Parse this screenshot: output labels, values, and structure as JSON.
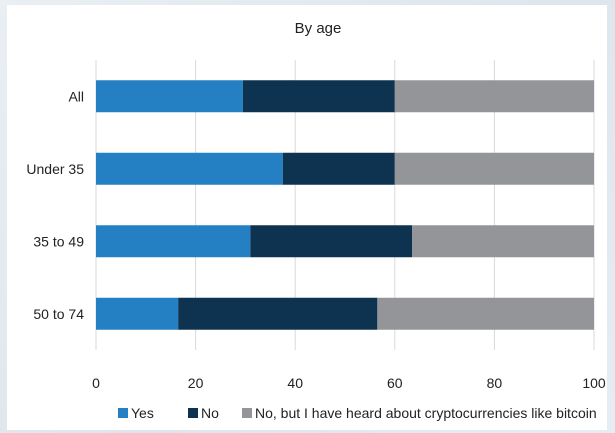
{
  "chart_data": {
    "type": "bar",
    "orientation": "horizontal",
    "stacked": true,
    "title": "By age",
    "categories": [
      "All",
      "Under 35",
      "35 to 49",
      "50 to 74"
    ],
    "series": [
      {
        "name": "Yes",
        "color": "#2580c3",
        "values": [
          29.5,
          37.5,
          31,
          16.5
        ]
      },
      {
        "name": "No",
        "color": "#0d3350",
        "values": [
          30.5,
          22.5,
          32.5,
          40
        ]
      },
      {
        "name": "No, but I have heard about cryptocurrencies like bitcoin",
        "color": "#939598",
        "values": [
          40,
          40,
          36.5,
          43.5
        ]
      }
    ],
    "xlim": [
      0,
      100
    ],
    "xticks": [
      "0",
      "20",
      "40",
      "60",
      "80",
      "100"
    ],
    "grid": true,
    "legend_position": "bottom"
  }
}
